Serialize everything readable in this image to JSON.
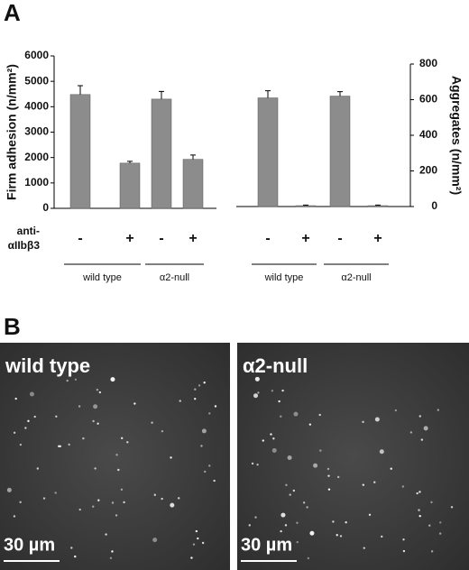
{
  "figure": {
    "panel_a_label": "A",
    "panel_b_label": "B"
  },
  "chart_data": [
    {
      "type": "bar",
      "y_label": "Firm adhesion (n/mm²)",
      "axis_side": "left",
      "categories": [
        "-",
        "+",
        "-",
        "+"
      ],
      "values": [
        4480,
        1780,
        4300,
        1930
      ],
      "errors": [
        350,
        70,
        300,
        170
      ],
      "color": "#8c8c8c",
      "ylim": [
        0,
        6000
      ],
      "yticks": [
        0,
        1000,
        2000,
        3000,
        4000,
        5000,
        6000
      ],
      "row_label": [
        "anti-",
        "αIIbβ3"
      ],
      "groups": [
        "wild type",
        "α2-null"
      ]
    },
    {
      "type": "bar",
      "y_label": "Aggregates (n/mm²)",
      "axis_side": "right",
      "categories": [
        "-",
        "+",
        "-",
        "+"
      ],
      "values": [
        610,
        5,
        620,
        5
      ],
      "errors": [
        40,
        3,
        25,
        3
      ],
      "color": "#8c8c8c",
      "ylim": [
        0,
        800
      ],
      "yticks": [
        0,
        200,
        400,
        600,
        800
      ],
      "groups": [
        "wild type",
        "α2-null"
      ]
    }
  ],
  "images": [
    {
      "label": "wild type",
      "scale_bar": "30 µm"
    },
    {
      "label": "α2-null",
      "scale_bar": "30 µm"
    }
  ]
}
